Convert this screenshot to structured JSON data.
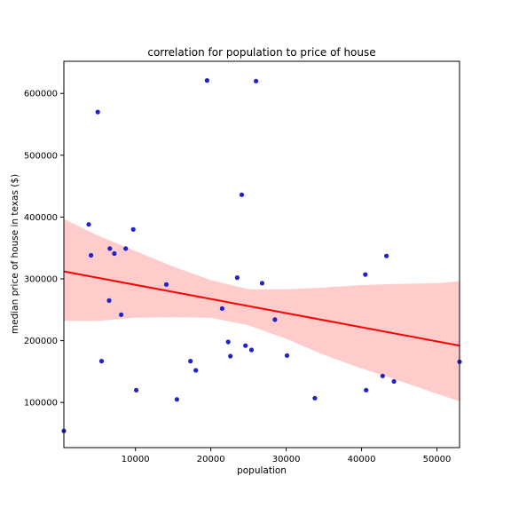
{
  "chart_data": {
    "type": "scatter",
    "title": "correlation for population to price of house",
    "xlabel": "population",
    "ylabel": "median price of house in texas ($)",
    "xlim": [
      500,
      53000
    ],
    "ylim": [
      27000,
      652000
    ],
    "xticks": [
      10000,
      20000,
      30000,
      40000,
      50000
    ],
    "yticks": [
      100000,
      200000,
      300000,
      400000,
      500000,
      600000
    ],
    "grid": false,
    "point_color": "#2222cc",
    "fit_color": "#ff0000",
    "band_color": "#ffcccc",
    "points": [
      {
        "x": 500,
        "y": 54000
      },
      {
        "x": 3800,
        "y": 388000
      },
      {
        "x": 4100,
        "y": 338000
      },
      {
        "x": 5000,
        "y": 570000
      },
      {
        "x": 5500,
        "y": 167000
      },
      {
        "x": 6500,
        "y": 265000
      },
      {
        "x": 6600,
        "y": 349000
      },
      {
        "x": 7200,
        "y": 341000
      },
      {
        "x": 8100,
        "y": 242000
      },
      {
        "x": 8700,
        "y": 349000
      },
      {
        "x": 9700,
        "y": 380000
      },
      {
        "x": 10100,
        "y": 120000
      },
      {
        "x": 14100,
        "y": 291000
      },
      {
        "x": 15500,
        "y": 105000
      },
      {
        "x": 17300,
        "y": 167000
      },
      {
        "x": 18000,
        "y": 152000
      },
      {
        "x": 19500,
        "y": 621000
      },
      {
        "x": 21500,
        "y": 252000
      },
      {
        "x": 22300,
        "y": 198000
      },
      {
        "x": 22600,
        "y": 175000
      },
      {
        "x": 23500,
        "y": 302000
      },
      {
        "x": 24100,
        "y": 436000
      },
      {
        "x": 24600,
        "y": 192000
      },
      {
        "x": 25400,
        "y": 185000
      },
      {
        "x": 26000,
        "y": 620000
      },
      {
        "x": 26800,
        "y": 293000
      },
      {
        "x": 28500,
        "y": 234000
      },
      {
        "x": 30100,
        "y": 176000
      },
      {
        "x": 33800,
        "y": 107000
      },
      {
        "x": 40500,
        "y": 307000
      },
      {
        "x": 40600,
        "y": 120000
      },
      {
        "x": 42800,
        "y": 143000
      },
      {
        "x": 43300,
        "y": 337000
      },
      {
        "x": 44300,
        "y": 134000
      },
      {
        "x": 53000,
        "y": 166000
      }
    ],
    "fit_line": {
      "x": [
        500,
        53000
      ],
      "y": [
        312000,
        192000
      ]
    },
    "confidence_band": {
      "x": [
        500,
        5000,
        10000,
        15000,
        20000,
        25000,
        30000,
        35000,
        40000,
        45000,
        50000,
        53000
      ],
      "upper": [
        397000,
        370000,
        345000,
        320000,
        298000,
        283000,
        283000,
        286000,
        290000,
        292000,
        293000,
        296000
      ],
      "lower": [
        232000,
        232000,
        237000,
        238000,
        237000,
        225000,
        203000,
        177000,
        155000,
        135000,
        114000,
        102000
      ]
    }
  }
}
